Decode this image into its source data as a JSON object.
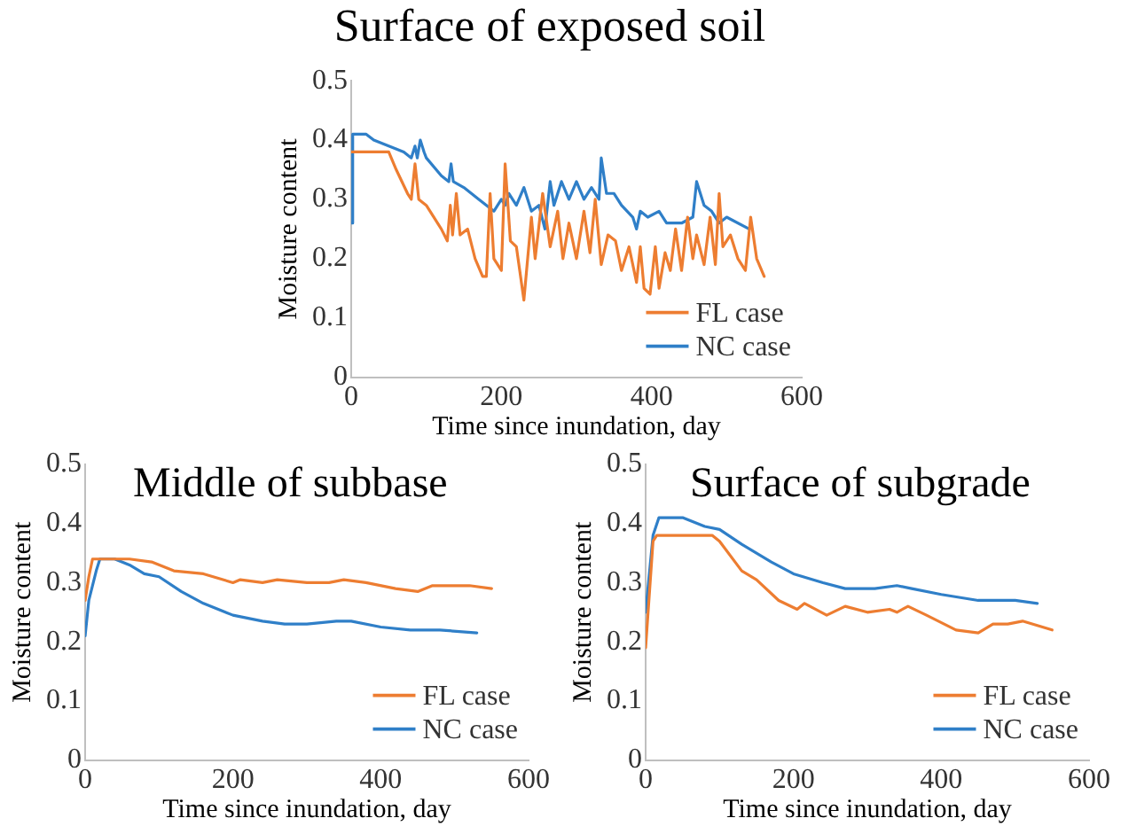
{
  "chart_data": [
    {
      "type": "line",
      "title": "Surface of exposed soil",
      "xlabel": "Time since inundation, day",
      "ylabel": "Moisture content",
      "xlim": [
        0,
        600
      ],
      "xticks": [
        0,
        200,
        400,
        600
      ],
      "ylim": [
        0,
        0.5
      ],
      "yticks": [
        0,
        0.1,
        0.2,
        0.3,
        0.4,
        0.5
      ],
      "legend": "bottom right",
      "marker": "none",
      "series": [
        {
          "name": "FL case",
          "color": "#ed7d31",
          "x": [
            0,
            50,
            60,
            75,
            80,
            85,
            90,
            100,
            120,
            128,
            132,
            135,
            140,
            145,
            155,
            165,
            175,
            180,
            185,
            190,
            200,
            205,
            212,
            220,
            230,
            240,
            245,
            255,
            265,
            275,
            282,
            290,
            300,
            310,
            318,
            325,
            333,
            342,
            352,
            360,
            370,
            380,
            385,
            390,
            398,
            405,
            410,
            418,
            425,
            432,
            440,
            448,
            455,
            460,
            470,
            478,
            485,
            490,
            495,
            505,
            515,
            525,
            532,
            540,
            550
          ],
          "values": [
            0.38,
            0.38,
            0.35,
            0.31,
            0.3,
            0.36,
            0.3,
            0.29,
            0.25,
            0.23,
            0.29,
            0.24,
            0.31,
            0.24,
            0.25,
            0.2,
            0.17,
            0.17,
            0.31,
            0.2,
            0.18,
            0.36,
            0.23,
            0.22,
            0.13,
            0.27,
            0.2,
            0.31,
            0.22,
            0.28,
            0.2,
            0.26,
            0.2,
            0.28,
            0.21,
            0.3,
            0.19,
            0.24,
            0.23,
            0.18,
            0.22,
            0.16,
            0.22,
            0.15,
            0.14,
            0.22,
            0.15,
            0.21,
            0.18,
            0.25,
            0.18,
            0.27,
            0.2,
            0.24,
            0.19,
            0.27,
            0.19,
            0.31,
            0.22,
            0.24,
            0.2,
            0.18,
            0.27,
            0.2,
            0.17
          ]
        },
        {
          "name": "NC case",
          "color": "#2f7fc8",
          "x": [
            0,
            2,
            20,
            30,
            50,
            70,
            80,
            85,
            88,
            92,
            97,
            100,
            120,
            130,
            133,
            136,
            150,
            170,
            190,
            200,
            205,
            210,
            220,
            230,
            240,
            250,
            258,
            265,
            270,
            280,
            290,
            300,
            310,
            320,
            330,
            333,
            340,
            350,
            360,
            375,
            380,
            385,
            395,
            410,
            420,
            440,
            455,
            460,
            470,
            480,
            490,
            500,
            530
          ],
          "values": [
            0.26,
            0.41,
            0.41,
            0.4,
            0.39,
            0.38,
            0.37,
            0.39,
            0.37,
            0.4,
            0.38,
            0.37,
            0.34,
            0.33,
            0.36,
            0.33,
            0.32,
            0.3,
            0.28,
            0.3,
            0.29,
            0.31,
            0.29,
            0.32,
            0.28,
            0.29,
            0.25,
            0.33,
            0.29,
            0.33,
            0.3,
            0.33,
            0.3,
            0.32,
            0.3,
            0.37,
            0.31,
            0.31,
            0.29,
            0.27,
            0.25,
            0.28,
            0.27,
            0.28,
            0.26,
            0.26,
            0.27,
            0.33,
            0.29,
            0.28,
            0.26,
            0.27,
            0.25
          ]
        }
      ]
    },
    {
      "type": "line",
      "title": "Middle of subbase",
      "xlabel": "Time since inundation, day",
      "ylabel": "Moisture content",
      "xlim": [
        0,
        600
      ],
      "xticks": [
        0,
        200,
        400,
        600
      ],
      "ylim": [
        0,
        0.5
      ],
      "yticks": [
        0,
        0.1,
        0.2,
        0.3,
        0.4,
        0.5
      ],
      "legend": "bottom right",
      "marker": "none",
      "series": [
        {
          "name": "FL case",
          "color": "#ed7d31",
          "x": [
            0,
            5,
            10,
            60,
            90,
            120,
            160,
            200,
            210,
            240,
            260,
            300,
            330,
            350,
            380,
            420,
            450,
            470,
            500,
            520,
            550
          ],
          "values": [
            0.27,
            0.31,
            0.34,
            0.34,
            0.335,
            0.32,
            0.315,
            0.3,
            0.305,
            0.3,
            0.305,
            0.3,
            0.3,
            0.305,
            0.3,
            0.29,
            0.285,
            0.295,
            0.295,
            0.295,
            0.29
          ]
        },
        {
          "name": "NC case",
          "color": "#2f7fc8",
          "x": [
            0,
            5,
            15,
            20,
            40,
            60,
            80,
            100,
            130,
            160,
            200,
            240,
            270,
            300,
            340,
            360,
            400,
            440,
            480,
            530
          ],
          "values": [
            0.21,
            0.27,
            0.32,
            0.34,
            0.34,
            0.33,
            0.315,
            0.31,
            0.285,
            0.265,
            0.245,
            0.235,
            0.23,
            0.23,
            0.235,
            0.235,
            0.225,
            0.22,
            0.22,
            0.215
          ]
        }
      ]
    },
    {
      "type": "line",
      "title": "Surface of subgrade",
      "xlabel": "Time since inundation, day",
      "ylabel": "Moisture content",
      "xlim": [
        0,
        600
      ],
      "xticks": [
        0,
        200,
        400,
        600
      ],
      "ylim": [
        0,
        0.5
      ],
      "yticks": [
        0,
        0.1,
        0.2,
        0.3,
        0.4,
        0.5
      ],
      "legend": "bottom right",
      "marker": "none",
      "series": [
        {
          "name": "FL case",
          "color": "#ed7d31",
          "x": [
            0,
            10,
            15,
            90,
            100,
            130,
            150,
            180,
            205,
            215,
            245,
            270,
            300,
            330,
            340,
            355,
            380,
            420,
            450,
            470,
            490,
            510,
            550
          ],
          "values": [
            0.19,
            0.37,
            0.38,
            0.38,
            0.37,
            0.32,
            0.305,
            0.27,
            0.255,
            0.265,
            0.245,
            0.26,
            0.25,
            0.255,
            0.25,
            0.26,
            0.245,
            0.22,
            0.215,
            0.23,
            0.23,
            0.235,
            0.22
          ]
        },
        {
          "name": "NC case",
          "color": "#2f7fc8",
          "x": [
            0,
            10,
            18,
            50,
            80,
            100,
            130,
            170,
            200,
            240,
            270,
            310,
            340,
            360,
            400,
            450,
            500,
            530
          ],
          "values": [
            0.25,
            0.38,
            0.41,
            0.41,
            0.395,
            0.39,
            0.365,
            0.335,
            0.315,
            0.3,
            0.29,
            0.29,
            0.295,
            0.29,
            0.28,
            0.27,
            0.27,
            0.265
          ]
        }
      ]
    }
  ]
}
